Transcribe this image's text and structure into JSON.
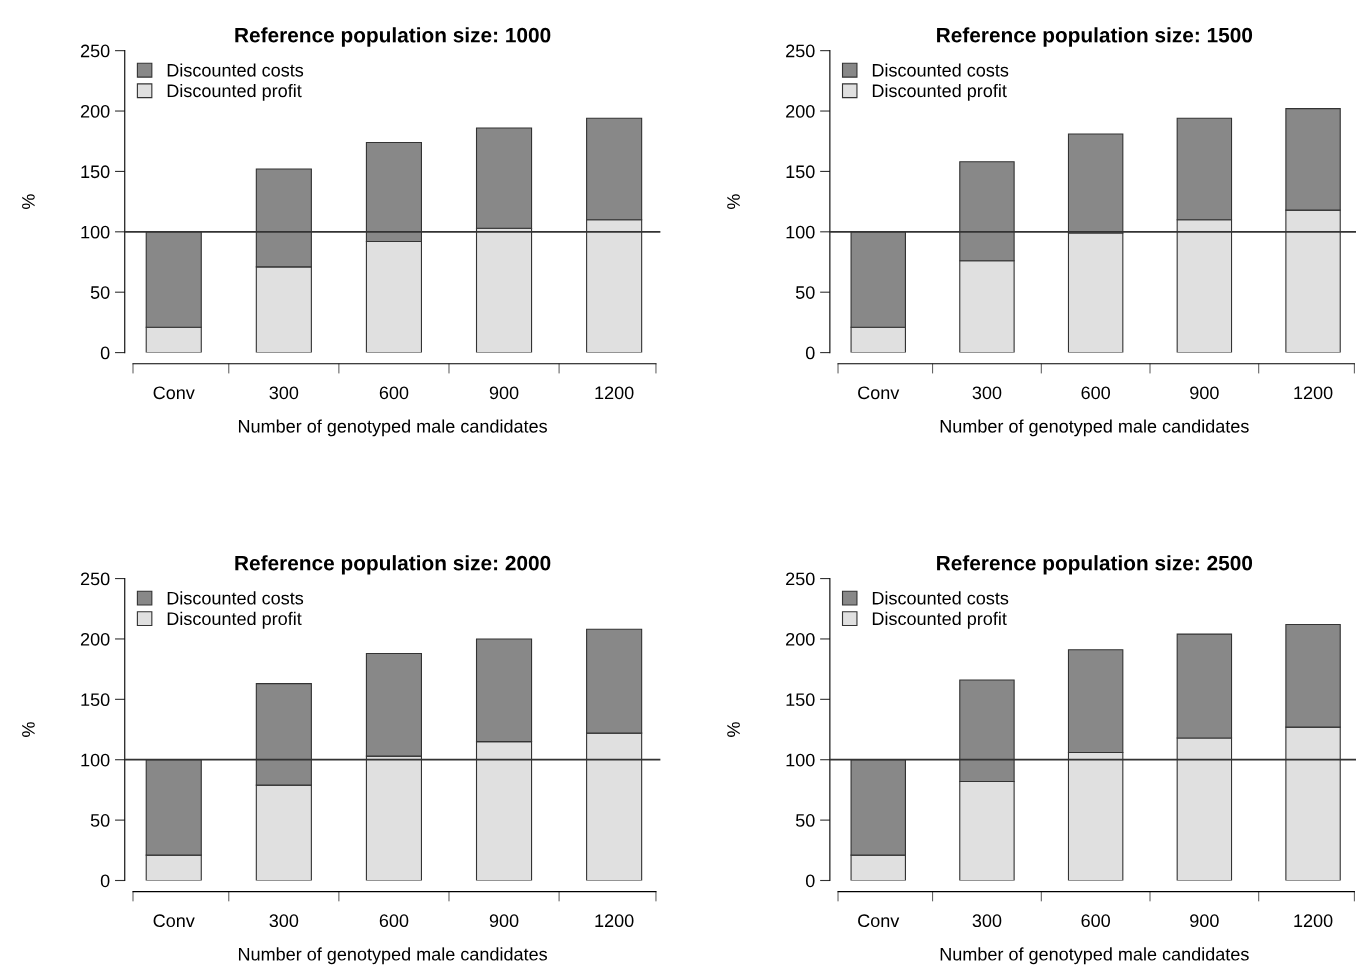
{
  "chart_data": [
    {
      "type": "bar",
      "title": "Reference population size: 1000",
      "xlabel": "Number of genotyped male candidates",
      "ylabel": "%",
      "categories": [
        "Conv",
        "300",
        "600",
        "900",
        "1200"
      ],
      "stacked": true,
      "ylim": [
        0,
        250
      ],
      "yticks": [
        0,
        50,
        100,
        150,
        200,
        250
      ],
      "legend": "top left",
      "grid": false,
      "series": [
        {
          "name": "Discounted profit",
          "color": "#e0e0e0",
          "values": [
            21,
            71,
            92,
            103,
            110
          ]
        },
        {
          "name": "Discounted costs",
          "color": "#888888",
          "values": [
            79,
            81,
            82,
            83,
            84
          ]
        }
      ],
      "ref_lines": [
        {
          "axis": "y",
          "value": 100,
          "color": "#333333"
        }
      ]
    },
    {
      "type": "bar",
      "title": "Reference population size: 1500",
      "xlabel": "Number of genotyped male candidates",
      "ylabel": "%",
      "categories": [
        "Conv",
        "300",
        "600",
        "900",
        "1200"
      ],
      "stacked": true,
      "ylim": [
        0,
        250
      ],
      "yticks": [
        0,
        50,
        100,
        150,
        200,
        250
      ],
      "legend": "top left",
      "grid": false,
      "series": [
        {
          "name": "Discounted profit",
          "color": "#e0e0e0",
          "values": [
            21,
            76,
            99,
            110,
            118
          ]
        },
        {
          "name": "Discounted costs",
          "color": "#888888",
          "values": [
            79,
            82,
            82,
            84,
            84
          ]
        }
      ],
      "ref_lines": [
        {
          "axis": "y",
          "value": 100,
          "color": "#333333"
        }
      ]
    },
    {
      "type": "bar",
      "title": "Reference population size: 2000",
      "xlabel": "Number of genotyped male candidates",
      "ylabel": "%",
      "categories": [
        "Conv",
        "300",
        "600",
        "900",
        "1200"
      ],
      "stacked": true,
      "ylim": [
        0,
        250
      ],
      "yticks": [
        0,
        50,
        100,
        150,
        200,
        250
      ],
      "legend": "top left",
      "grid": false,
      "series": [
        {
          "name": "Discounted profit",
          "color": "#e0e0e0",
          "values": [
            21,
            79,
            103,
            115,
            122
          ]
        },
        {
          "name": "Discounted costs",
          "color": "#888888",
          "values": [
            79,
            84,
            85,
            85,
            86
          ]
        }
      ],
      "ref_lines": [
        {
          "axis": "y",
          "value": 100,
          "color": "#333333"
        }
      ]
    },
    {
      "type": "bar",
      "title": "Reference population size: 2500",
      "xlabel": "Number of genotyped male candidates",
      "ylabel": "%",
      "categories": [
        "Conv",
        "300",
        "600",
        "900",
        "1200"
      ],
      "stacked": true,
      "ylim": [
        0,
        250
      ],
      "yticks": [
        0,
        50,
        100,
        150,
        200,
        250
      ],
      "legend": "top left",
      "grid": false,
      "series": [
        {
          "name": "Discounted profit",
          "color": "#e0e0e0",
          "values": [
            21,
            82,
            106,
            118,
            127
          ]
        },
        {
          "name": "Discounted costs",
          "color": "#888888",
          "values": [
            79,
            84,
            85,
            86,
            85
          ]
        }
      ],
      "ref_lines": [
        {
          "axis": "y",
          "value": 100,
          "color": "#333333"
        }
      ]
    }
  ]
}
